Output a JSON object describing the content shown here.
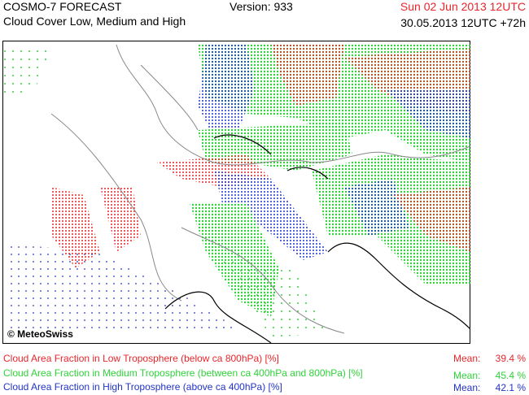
{
  "header": {
    "title": "COSMO-7 FORECAST",
    "subtitle": "Cloud Cover Low, Medium and High",
    "version": "Version: 933",
    "valid_time": "Sun 02 Jun 2013 12UTC",
    "run_time": "30.05.2013 12UTC +72h"
  },
  "map": {
    "credit": "© MeteoSwiss"
  },
  "legend": [
    {
      "label": "Cloud Area Fraction in Low Troposphere (below ca 800hPa) [%]",
      "mean_label": "Mean:",
      "mean": "39.4 %"
    },
    {
      "label": "Cloud Area Fraction in Medium Troposphere (between ca 400hPa and 800hPa) [%]",
      "mean_label": "Mean:",
      "mean": "45.4 %"
    },
    {
      "label": "Cloud Area Fraction in High Troposphere (above ca 400hPa) [%]",
      "mean_label": "Mean:",
      "mean": "42.1 %"
    }
  ]
}
